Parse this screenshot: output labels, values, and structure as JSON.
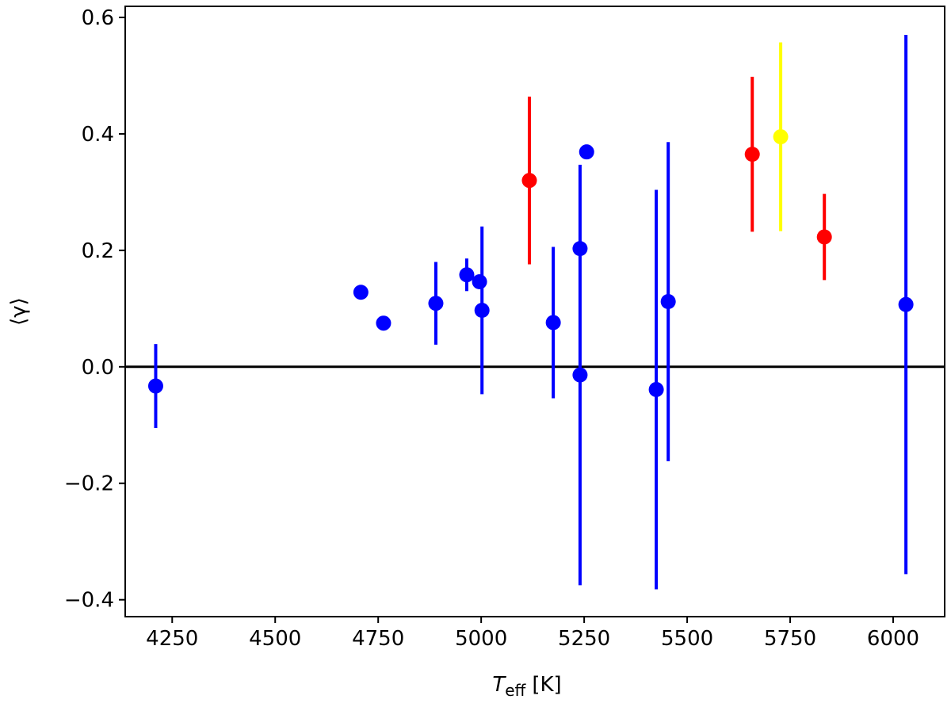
{
  "chart_data": {
    "type": "errorbar-scatter",
    "xlabel": {
      "symbol": "T",
      "subscript": "eff",
      "unit": "[K]"
    },
    "ylabel": "⟨γ⟩",
    "xlim": [
      4136,
      6125
    ],
    "ylim": [
      -0.429,
      0.619
    ],
    "xticks": [
      4250,
      4500,
      4750,
      5000,
      5250,
      5500,
      5750,
      6000
    ],
    "yticks": [
      {
        "value": -0.4,
        "label": "−0.4"
      },
      {
        "value": -0.2,
        "label": "−0.2"
      },
      {
        "value": 0,
        "label": "0.0"
      },
      0.2,
      0.4,
      0.6
    ],
    "hline": 0,
    "series": [
      {
        "color": "#0000ff",
        "x": [
          4210,
          4708,
          4763,
          4890,
          4965,
          4996,
          5002,
          5175,
          5240,
          5240,
          5256,
          5425,
          5454,
          6031
        ],
        "values": [
          -0.033,
          0.128,
          0.075,
          0.109,
          0.158,
          0.146,
          0.097,
          0.076,
          0.203,
          -0.014,
          0.369,
          -0.039,
          0.112,
          0.107
        ],
        "errors": [
          0.072,
          null,
          null,
          0.071,
          0.028,
          null,
          0.144,
          0.13,
          null,
          0.361,
          null,
          0.343,
          0.274,
          0.463
        ]
      },
      {
        "color": "#ff0000",
        "x": [
          5117,
          5658,
          5833
        ],
        "values": [
          0.32,
          0.365,
          0.223
        ],
        "errors": [
          0.144,
          0.133,
          0.074
        ]
      },
      {
        "color": "#ffff00",
        "x": [
          5727
        ],
        "values": [
          0.395
        ],
        "errors": [
          0.162
        ]
      }
    ]
  }
}
